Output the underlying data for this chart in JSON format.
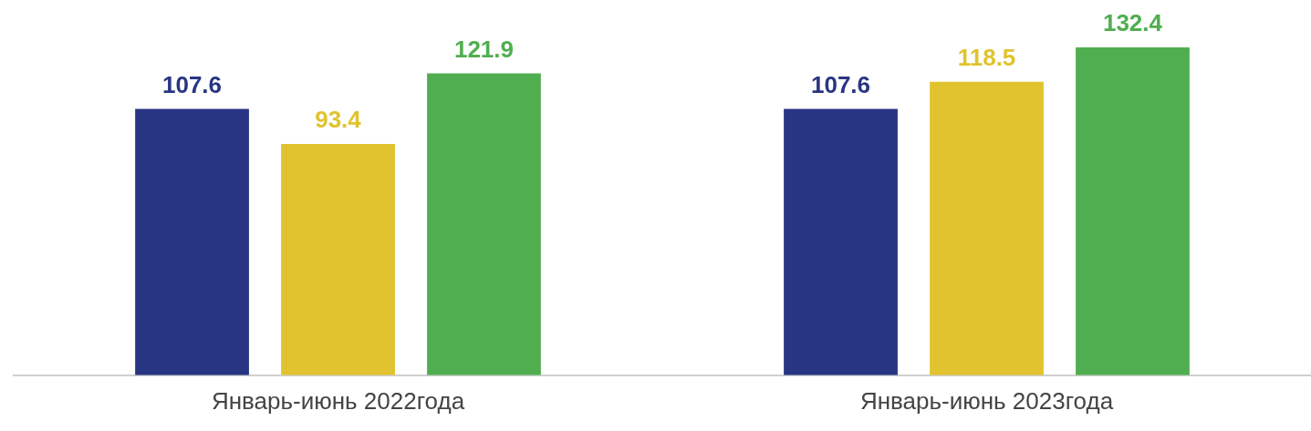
{
  "chart_data": {
    "type": "bar",
    "categories": [
      "Январь-июнь 2022года",
      "Январь-июнь 2023года"
    ],
    "series": [
      {
        "color": "#283583",
        "values": [
          107.6,
          107.6
        ]
      },
      {
        "color": "#e0c32e",
        "values": [
          93.4,
          118.5
        ]
      },
      {
        "color": "#50ae50",
        "values": [
          121.9,
          132.4
        ]
      }
    ],
    "data_labels": true,
    "grid": false,
    "legend": false
  }
}
